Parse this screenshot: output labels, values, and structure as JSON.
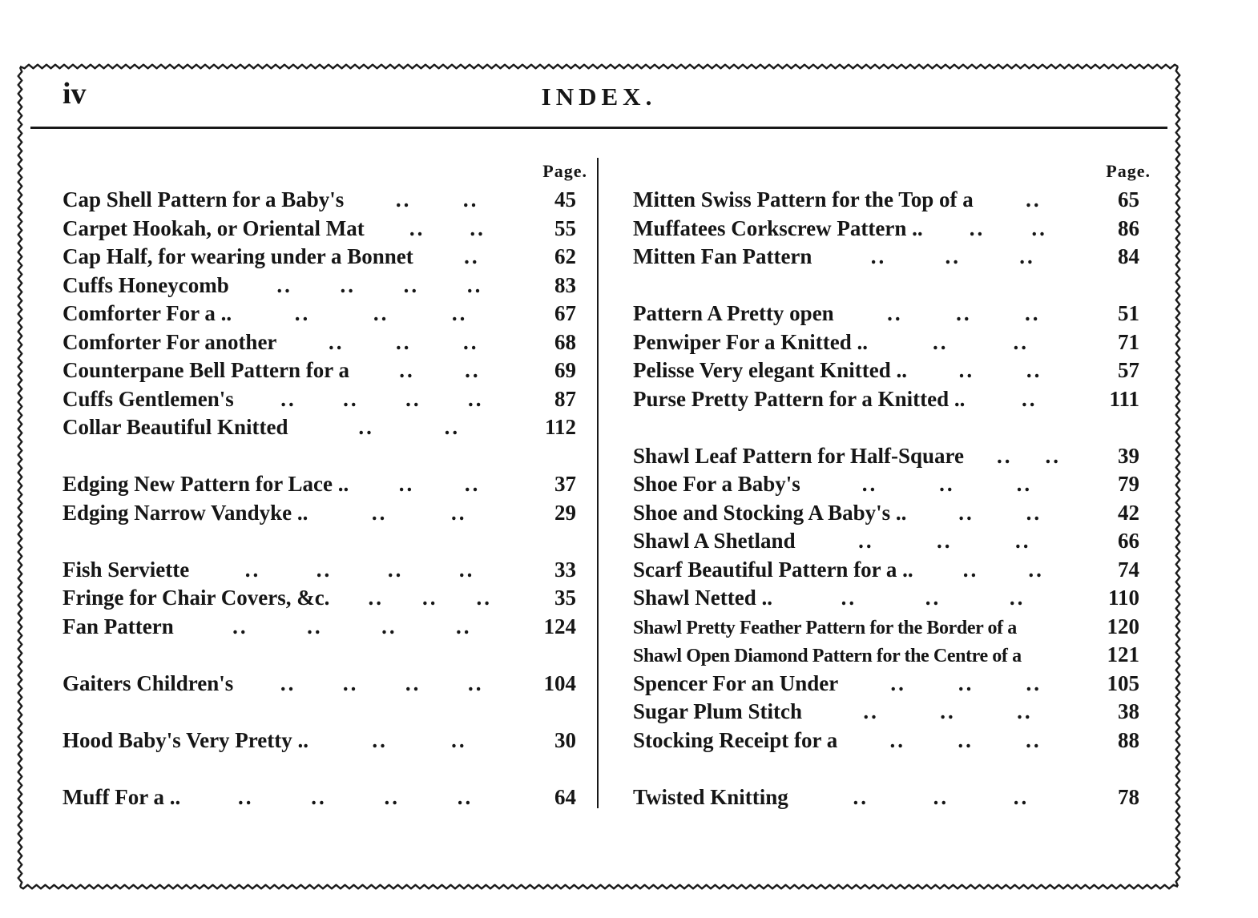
{
  "colors": {
    "ink": "#1a1a1a",
    "paper": "#ffffff"
  },
  "page": {
    "folio": "iv",
    "title": "INDEX.",
    "left_column": {
      "page_label": "Page.",
      "groups": [
        {
          "entries": [
            {
              "title": "Cap Shell Pattern for a Baby's",
              "dots": 2,
              "page": "45"
            },
            {
              "title": "Carpet Hookah, or Oriental Mat",
              "dots": 2,
              "page": "55"
            },
            {
              "title": "Cap Half, for wearing under a Bonnet",
              "dots": 1,
              "page": "62"
            },
            {
              "title": "Cuffs Honeycomb",
              "dots": 4,
              "page": "83"
            },
            {
              "title": "Comforter For a ..",
              "dots": 3,
              "page": "67"
            },
            {
              "title": "Comforter For another",
              "dots": 3,
              "page": "68"
            },
            {
              "title": "Counterpane Bell Pattern for a",
              "dots": 2,
              "page": "69"
            },
            {
              "title": "Cuffs Gentlemen's",
              "dots": 4,
              "page": "87"
            },
            {
              "title": "Collar Beautiful Knitted",
              "dots": 2,
              "page": "112"
            }
          ]
        },
        {
          "entries": [
            {
              "title": "Edging New Pattern for Lace ..",
              "dots": 2,
              "page": "37"
            },
            {
              "title": "Edging Narrow Vandyke ..",
              "dots": 2,
              "page": "29"
            }
          ]
        },
        {
          "entries": [
            {
              "title": "Fish Serviette",
              "dots": 4,
              "page": "33"
            },
            {
              "title": "Fringe for Chair Covers, &c.",
              "dots": 3,
              "page": "35"
            },
            {
              "title": "Fan Pattern",
              "dots": 4,
              "page": "124"
            }
          ]
        },
        {
          "entries": [
            {
              "title": "Gaiters Children's",
              "dots": 4,
              "page": "104"
            }
          ]
        },
        {
          "entries": [
            {
              "title": "Hood Baby's Very Pretty ..",
              "dots": 2,
              "page": "30"
            }
          ]
        },
        {
          "entries": [
            {
              "title": "Muff For a ..",
              "dots": 4,
              "page": "64"
            }
          ]
        }
      ]
    },
    "right_column": {
      "page_label": "Page.",
      "groups": [
        {
          "entries": [
            {
              "title": "Mitten Swiss Pattern for the Top of a",
              "dots": 1,
              "page": "65"
            },
            {
              "title": "Muffatees Corkscrew Pattern ..",
              "dots": 2,
              "page": "86"
            },
            {
              "title": "Mitten Fan Pattern",
              "dots": 3,
              "page": "84"
            }
          ]
        },
        {
          "entries": [
            {
              "title": "Pattern A Pretty open",
              "dots": 3,
              "page": "51"
            },
            {
              "title": "Penwiper For a Knitted ..",
              "dots": 2,
              "page": "71"
            },
            {
              "title": "Pelisse Very elegant Knitted ..",
              "dots": 2,
              "page": "57"
            },
            {
              "title": "Purse Pretty Pattern for a Knitted ..",
              "dots": 1,
              "page": "111"
            }
          ]
        },
        {
          "entries": [
            {
              "title": "Shawl Leaf Pattern for Half-Square",
              "dots": 2,
              "page": "39"
            },
            {
              "title": "Shoe For a Baby's",
              "dots": 3,
              "page": "79"
            },
            {
              "title": "Shoe and Stocking A Baby's ..",
              "dots": 2,
              "page": "42"
            },
            {
              "title": "Shawl A Shetland",
              "dots": 3,
              "page": "66"
            },
            {
              "title": "Scarf Beautiful Pattern for a ..",
              "dots": 2,
              "page": "74"
            },
            {
              "title": "Shawl Netted ..",
              "dots": 3,
              "page": "110"
            },
            {
              "title": "Shawl Pretty Feather Pattern for the Border of a",
              "dots": 0,
              "page": "120"
            },
            {
              "title": "Shawl Open Diamond Pattern for the Centre of a",
              "dots": 0,
              "page": "121"
            },
            {
              "title": "Spencer For an Under",
              "dots": 3,
              "page": "105"
            },
            {
              "title": "Sugar Plum Stitch",
              "dots": 3,
              "page": "38"
            },
            {
              "title": "Stocking Receipt for a",
              "dots": 3,
              "page": "88"
            }
          ]
        },
        {
          "entries": [
            {
              "title": "Twisted Knitting",
              "dots": 3,
              "page": "78"
            }
          ]
        }
      ]
    }
  }
}
